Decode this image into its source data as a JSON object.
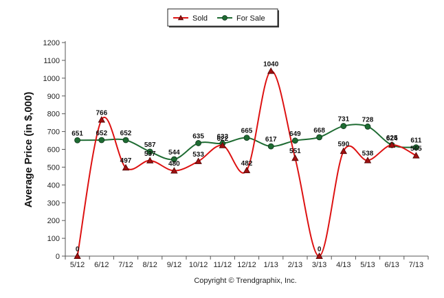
{
  "chart_data": {
    "type": "line",
    "ylabel": "Average Price (in $,000)",
    "xlabel": "",
    "ylim": [
      0,
      1200
    ],
    "yticks": [
      0,
      100,
      200,
      300,
      400,
      500,
      600,
      700,
      800,
      900,
      1000,
      1100,
      1200
    ],
    "grid": false,
    "legend_position": "top-center",
    "categories": [
      "5/12",
      "6/12",
      "7/12",
      "8/12",
      "9/12",
      "10/12",
      "11/12",
      "12/12",
      "1/13",
      "2/13",
      "3/13",
      "4/13",
      "5/13",
      "6/13",
      "7/13"
    ],
    "series": [
      {
        "name": "Sold",
        "color": "#dd1111",
        "marker": "triangle",
        "values": [
          0,
          766,
          497,
          537,
          480,
          533,
          622,
          482,
          1040,
          551,
          0,
          590,
          538,
          625,
          565
        ]
      },
      {
        "name": "For Sale",
        "color": "#1e6b32",
        "marker": "circle",
        "values": [
          651,
          652,
          652,
          587,
          544,
          635,
          633,
          665,
          617,
          649,
          668,
          731,
          728,
          624,
          611
        ]
      }
    ],
    "copyright": "Copyright © Trendgraphix, Inc."
  }
}
